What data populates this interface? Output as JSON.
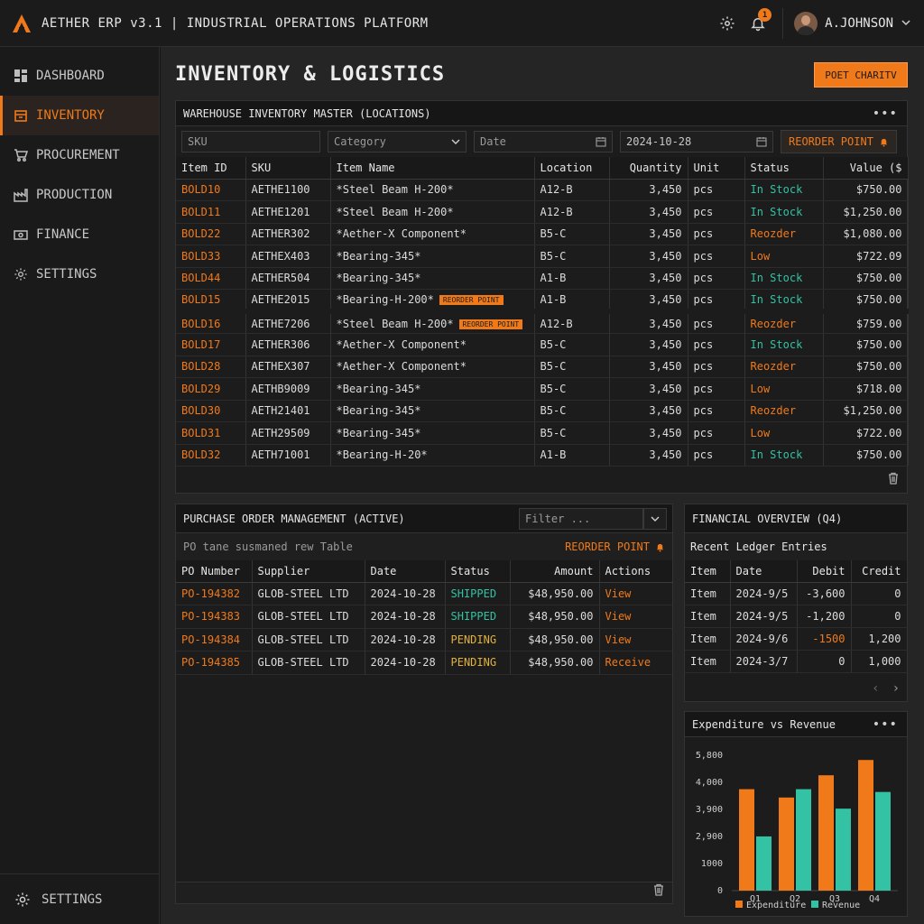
{
  "app": {
    "title": "AETHER ERP v3.1 | INDUSTRIAL OPERATIONS PLATFORM",
    "notifications": "1",
    "user": "A.JOHNSON"
  },
  "sidebar": {
    "items": [
      {
        "label": "DASHBOARD",
        "icon": "dashboard-icon"
      },
      {
        "label": "INVENTORY",
        "icon": "box-icon",
        "active": true
      },
      {
        "label": "PROCUREMENT",
        "icon": "cart-icon"
      },
      {
        "label": "PRODUCTION",
        "icon": "factory-icon"
      },
      {
        "label": "FINANCE",
        "icon": "money-icon"
      },
      {
        "label": "SETTINGS",
        "icon": "gear-icon"
      }
    ],
    "bottom_label": "SETTINGS"
  },
  "page": {
    "title": "INVENTORY & LOGISTICS",
    "action_button": "POET CHARITV"
  },
  "inventory": {
    "title": "WAREHOUSE INVENTORY MASTER (LOCATIONS)",
    "filters": {
      "sku": "SKU",
      "category": "Category",
      "date": "Date",
      "date_value": "2024-10-28",
      "reorder": "REORDER POINT"
    },
    "columns": [
      "Item ID",
      "SKU",
      "Item Name",
      "Location",
      "Quantity",
      "Unit",
      "Status",
      "Value ($"
    ],
    "rows": [
      {
        "id": "BOLD10",
        "sku": "AETHE1100",
        "name": "*Steel Beam H-200*",
        "tag": "",
        "loc": "A12-B",
        "qty": "3,450",
        "unit": "pcs",
        "status": "In Stock",
        "st": "green",
        "value": "$750.00"
      },
      {
        "id": "BOLD11",
        "sku": "AETHE1201",
        "name": "*Steel Beam H-200*",
        "tag": "",
        "loc": "A12-B",
        "qty": "3,450",
        "unit": "pcs",
        "status": "In Stock",
        "st": "green",
        "value": "$1,250.00"
      },
      {
        "id": "BOLD22",
        "sku": "AETHER302",
        "name": "*Aether-X Component*",
        "tag": "",
        "loc": "B5-C",
        "qty": "3,450",
        "unit": "pcs",
        "status": "Reozder",
        "st": "orange",
        "value": "$1,080.00"
      },
      {
        "id": "BOLD33",
        "sku": "AETHEX403",
        "name": "*Bearing-345*",
        "tag": "",
        "loc": "B5-C",
        "qty": "3,450",
        "unit": "pcs",
        "status": "Low",
        "st": "orange",
        "value": "$722.09"
      },
      {
        "id": "BOLD44",
        "sku": "AETHER504",
        "name": "*Bearing-345*",
        "tag": "",
        "loc": "A1-B",
        "qty": "3,450",
        "unit": "pcs",
        "status": "In Stock",
        "st": "green",
        "value": "$750.00"
      },
      {
        "id": "BOLD15",
        "sku": "AETHE2015",
        "name": "*Bearing-H-200*",
        "tag": "REORDER POINT",
        "loc": "A1-B",
        "qty": "3,450",
        "unit": "pcs",
        "status": "In Stock",
        "st": "green",
        "value": "$750.00"
      },
      {
        "id": "BOLD16",
        "sku": "AETHE7206",
        "name": "*Steel Beam H-200*",
        "tag": "REORDER POINT",
        "loc": "A12-B",
        "qty": "3,450",
        "unit": "pcs",
        "status": "Reozder",
        "st": "orange",
        "value": "$759.00"
      },
      {
        "id": "BOLD17",
        "sku": "AETHER306",
        "name": "*Aether-X Component*",
        "tag": "",
        "loc": "B5-C",
        "qty": "3,450",
        "unit": "pcs",
        "status": "In Stock",
        "st": "green",
        "value": "$750.00"
      },
      {
        "id": "BOLD28",
        "sku": "AETHEX307",
        "name": "*Aether-X Component*",
        "tag": "",
        "loc": "B5-C",
        "qty": "3,450",
        "unit": "pcs",
        "status": "Reozder",
        "st": "orange",
        "value": "$750.00"
      },
      {
        "id": "BOLD29",
        "sku": "AETHB9009",
        "name": "*Bearing-345*",
        "tag": "",
        "loc": "B5-C",
        "qty": "3,450",
        "unit": "pcs",
        "status": "Low",
        "st": "orange",
        "value": "$718.00"
      },
      {
        "id": "BOLD30",
        "sku": "AETH21401",
        "name": "*Bearing-345*",
        "tag": "",
        "loc": "B5-C",
        "qty": "3,450",
        "unit": "pcs",
        "status": "Reozder",
        "st": "orange",
        "value": "$1,250.00"
      },
      {
        "id": "BOLD31",
        "sku": "AETH29509",
        "name": "*Bearing-345*",
        "tag": "",
        "loc": "B5-C",
        "qty": "3,450",
        "unit": "pcs",
        "status": "Low",
        "st": "orange",
        "value": "$722.00"
      },
      {
        "id": "BOLD32",
        "sku": "AETH71001",
        "name": "*Bearing-H-20*",
        "tag": "",
        "loc": "A1-B",
        "qty": "3,450",
        "unit": "pcs",
        "status": "In Stock",
        "st": "green",
        "value": "$750.00"
      }
    ]
  },
  "po": {
    "title": "PURCHASE ORDER MANAGEMENT (ACTIVE)",
    "filter_placeholder": "Filter ...",
    "subtitle": "PO tane susmaned rew Table",
    "reorder": "REORDER POINT",
    "columns": [
      "PO Number",
      "Supplier",
      "Date",
      "Status",
      "Amount",
      "Actions"
    ],
    "rows": [
      {
        "num": "PO-194382",
        "supplier": "GLOB-STEEL LTD",
        "date": "2024-10-28",
        "status": "SHIPPED",
        "st": "green",
        "amount": "$48,950.00",
        "action": "View"
      },
      {
        "num": "PO-194383",
        "supplier": "GLOB-STEEL LTD",
        "date": "2024-10-28",
        "status": "SHIPPED",
        "st": "green",
        "amount": "$48,950.00",
        "action": "View"
      },
      {
        "num": "PO-194384",
        "supplier": "GLOB-STEEL LTD",
        "date": "2024-10-28",
        "status": "PENDING",
        "st": "yellow",
        "amount": "$48,950.00",
        "action": "View"
      },
      {
        "num": "PO-194385",
        "supplier": "GLOB-STEEL LTD",
        "date": "2024-10-28",
        "status": "PENDING",
        "st": "yellow",
        "amount": "$48,950.00",
        "action": "Receive"
      }
    ]
  },
  "finance": {
    "title": "FINANCIAL OVERVIEW (Q4)",
    "subtitle": "Recent Ledger Entries",
    "columns": [
      "Item",
      "Date",
      "Debit",
      "Credit"
    ],
    "rows": [
      {
        "item": "Item",
        "date": "2024-9/5",
        "debit": "-3,600",
        "credit": "0",
        "neg": false
      },
      {
        "item": "Item",
        "date": "2024-9/5",
        "debit": "-1,200",
        "credit": "0",
        "neg": false
      },
      {
        "item": "Item",
        "date": "2024-9/6",
        "debit": "-1500",
        "credit": "1,200",
        "neg": true
      },
      {
        "item": "Item",
        "date": "2024-3/7",
        "debit": "0",
        "credit": "1,000",
        "neg": false
      }
    ],
    "pager_prev": "‹",
    "pager_next": "›"
  },
  "chart_panel": {
    "title": "Expenditure vs Revenue"
  },
  "chart_data": {
    "type": "bar",
    "categories": [
      "Q1",
      "Q2",
      "Q3",
      "Q4"
    ],
    "series": [
      {
        "name": "Expenditure",
        "values": [
          3650,
          3350,
          4150,
          4700
        ],
        "color": "#f07a1a"
      },
      {
        "name": "Revenue",
        "values": [
          1950,
          3650,
          2950,
          3550
        ],
        "color": "#33c2a4"
      }
    ],
    "ytick_labels": [
      "0",
      "1000",
      "2,900",
      "3,900",
      "4,000",
      "5,800"
    ],
    "ylim": [
      0,
      5000
    ],
    "grid": false,
    "legend": "bottom"
  }
}
